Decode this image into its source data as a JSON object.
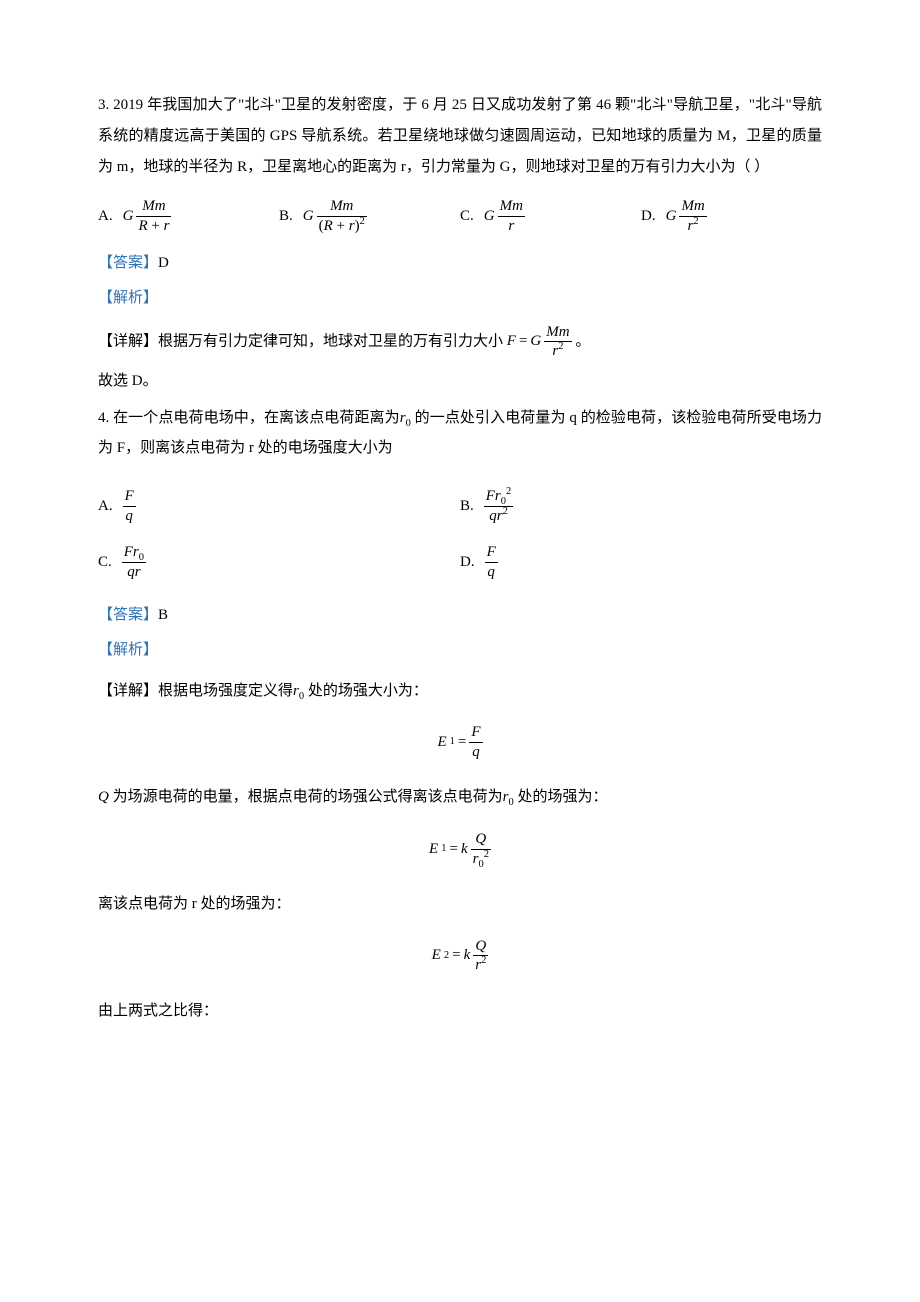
{
  "colors": {
    "text": "#000000",
    "accent": "#2e74b5",
    "bg": "#ffffff"
  },
  "q3": {
    "stem": "3. 2019 年我国加大了\"北斗\"卫星的发射密度，于 6 月 25 日又成功发射了第 46 颗\"北斗\"导航卫星，\"北斗\"导航系统的精度远高于美国的 GPS 导航系统。若卫星绕地球做匀速圆周运动，已知地球的质量为 M，卫星的质量为 m，地球的半径为 R，卫星离地心的距离为 r，引力常量为 G，则地球对卫星的万有引力大小为（    ）",
    "opt_a": "A.",
    "opt_b": "B.",
    "opt_c": "C.",
    "opt_d": "D.",
    "answer_label": "【答案】",
    "answer_val": "D",
    "analysis_label": "【解析】",
    "detail_prefix": "【详解】根据万有引力定律可知，地球对卫星的万有引力大小",
    "detail_suffix": "。",
    "conclude": "故选 D。"
  },
  "q4": {
    "stem_a": "4. 在一个点电荷电场中，在离该点电荷距离为",
    "stem_b": "的一点处引入电荷量为 q 的检验电荷，该检验电荷所受电场力为 F，则离该点电荷为 r 处的电场强度大小为",
    "opt_a": "A.",
    "opt_b": "B.",
    "opt_c": "C.",
    "opt_d": "D.",
    "answer_label": "【答案】",
    "answer_val": "B",
    "analysis_label": "【解析】",
    "detail_line1_a": "【详解】根据电场强度定义得",
    "detail_line1_b": "处的场强大小为：",
    "detail_line2_a": "为场源电荷的电量，根据点电荷的场强公式得离该点电荷为",
    "detail_line2_b": "处的场强为：",
    "detail_line3": "离该点电荷为 r 处的场强为：",
    "detail_line4": "由上两式之比得："
  }
}
